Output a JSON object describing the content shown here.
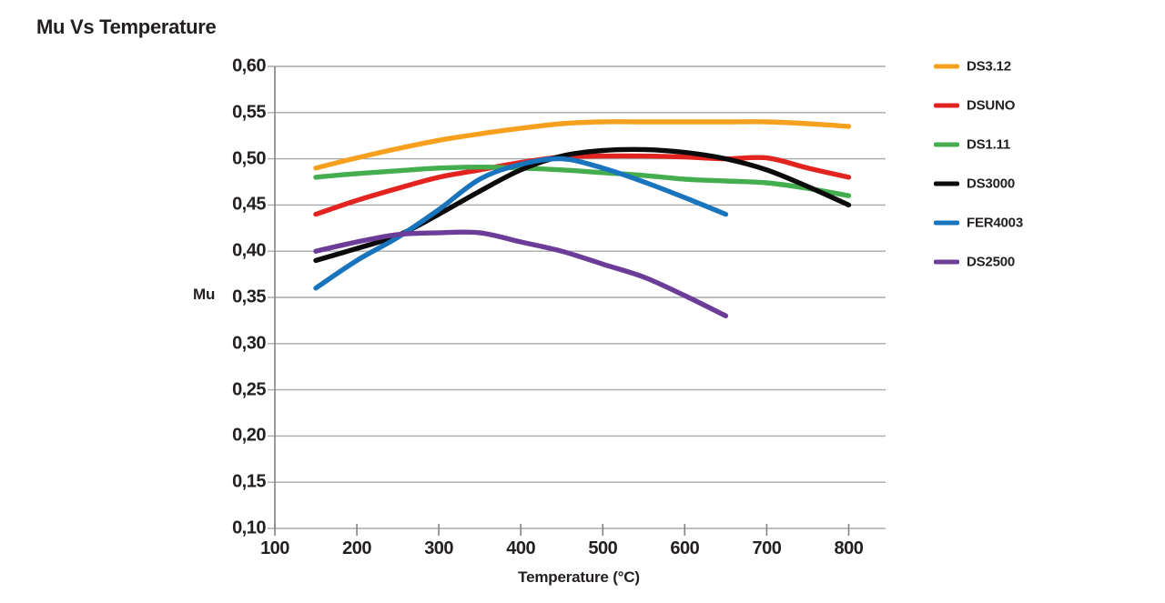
{
  "chart_data": {
    "type": "line",
    "title": "Mu Vs Temperature",
    "xlabel": "Temperature (°C)",
    "ylabel": "Mu",
    "grid": true,
    "legend_position": "right",
    "xlim": [
      100,
      845
    ],
    "ylim": [
      0.1,
      0.6
    ],
    "x_ticks": [
      100,
      200,
      300,
      400,
      500,
      600,
      700,
      800
    ],
    "y_ticks": [
      0.6,
      0.55,
      0.5,
      0.45,
      0.4,
      0.35,
      0.3,
      0.25,
      0.2,
      0.15,
      0.1
    ],
    "y_tick_labels": [
      "0,60",
      "0,55",
      "0,50",
      "0,45",
      "0,40",
      "0,35",
      "0,30",
      "0,25",
      "0,20",
      "0,15",
      "0,10"
    ],
    "colors": {
      "grid": "#A7A9AC",
      "axis": "#808285",
      "text": "#231F20"
    },
    "series": [
      {
        "name": "DS3.12",
        "color": "#F7A01E",
        "x": [
          150,
          200,
          250,
          300,
          350,
          400,
          450,
          500,
          550,
          600,
          650,
          700,
          750,
          800
        ],
        "y": [
          0.49,
          0.501,
          0.511,
          0.52,
          0.527,
          0.533,
          0.538,
          0.54,
          0.54,
          0.54,
          0.54,
          0.54,
          0.538,
          0.535
        ]
      },
      {
        "name": "DSUNO",
        "color": "#E2231F",
        "x": [
          150,
          200,
          250,
          300,
          350,
          400,
          450,
          500,
          550,
          600,
          650,
          700,
          750,
          800
        ],
        "y": [
          0.44,
          0.455,
          0.468,
          0.48,
          0.488,
          0.496,
          0.502,
          0.503,
          0.503,
          0.502,
          0.5,
          0.501,
          0.49,
          0.48
        ]
      },
      {
        "name": "DS1.11",
        "color": "#44AE4F",
        "x": [
          150,
          200,
          250,
          300,
          350,
          400,
          450,
          500,
          550,
          600,
          650,
          700,
          750,
          800
        ],
        "y": [
          0.48,
          0.484,
          0.487,
          0.49,
          0.491,
          0.49,
          0.488,
          0.485,
          0.482,
          0.478,
          0.476,
          0.474,
          0.468,
          0.46
        ]
      },
      {
        "name": "DS3000",
        "color": "#0B0B0B",
        "x": [
          150,
          200,
          250,
          300,
          350,
          400,
          450,
          500,
          550,
          600,
          650,
          700,
          750,
          800
        ],
        "y": [
          0.39,
          0.403,
          0.417,
          0.44,
          0.465,
          0.488,
          0.503,
          0.509,
          0.51,
          0.507,
          0.5,
          0.488,
          0.47,
          0.45
        ]
      },
      {
        "name": "FER4003",
        "color": "#1874BC",
        "x": [
          150,
          200,
          250,
          300,
          350,
          400,
          450,
          500,
          550,
          600,
          650
        ],
        "y": [
          0.36,
          0.39,
          0.415,
          0.445,
          0.478,
          0.494,
          0.5,
          0.49,
          0.475,
          0.458,
          0.44
        ]
      },
      {
        "name": "DS2500",
        "color": "#6C3D98",
        "x": [
          150,
          200,
          250,
          300,
          350,
          400,
          450,
          500,
          550,
          600,
          650
        ],
        "y": [
          0.4,
          0.41,
          0.418,
          0.42,
          0.42,
          0.41,
          0.4,
          0.386,
          0.372,
          0.352,
          0.33
        ]
      }
    ]
  }
}
